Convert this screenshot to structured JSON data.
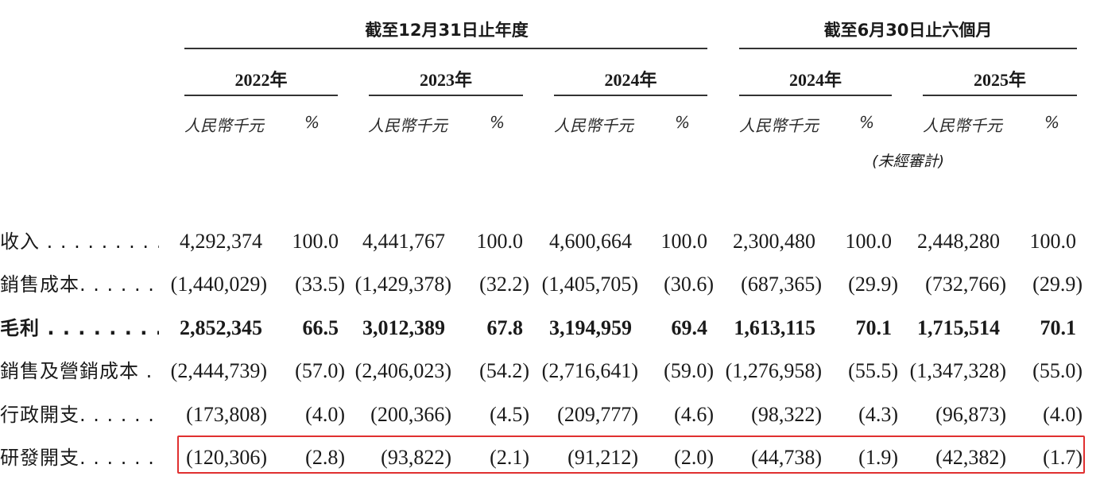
{
  "header": {
    "group_annual": "截至12月31日止年度",
    "group_half": "截至6月30日止六個月",
    "years": [
      "2022年",
      "2023年",
      "2024年",
      "2024年",
      "2025年"
    ],
    "unit_amount": "人民幣千元",
    "unit_pct": "%",
    "unaudited_note": "(未經審計)"
  },
  "rows": [
    {
      "label": "收入 . . . . . . . . . . . .",
      "values": [
        "4,292,374",
        "100.0",
        "4,441,767",
        "100.0",
        "4,600,664",
        "100.0",
        "2,300,480",
        "100.0",
        "2,448,280",
        "100.0"
      ]
    },
    {
      "label": "銷售成本. . . . . . . . .",
      "values": [
        "(1,440,029)",
        "(33.5)",
        "(1,429,378)",
        "(32.2)",
        "(1,405,705)",
        "(30.6)",
        "(687,365)",
        "(29.9)",
        "(732,766)",
        "(29.9)"
      ]
    },
    {
      "label": "毛利 . . . . . . . . . . . .",
      "values": [
        "2,852,345",
        "66.5",
        "3,012,389",
        "67.8",
        "3,194,959",
        "69.4",
        "1,613,115",
        "70.1",
        "1,715,514",
        "70.1"
      ]
    },
    {
      "label": "銷售及營銷成本 . .",
      "values": [
        "(2,444,739)",
        "(57.0)",
        "(2,406,023)",
        "(54.2)",
        "(2,716,641)",
        "(59.0)",
        "(1,276,958)",
        "(55.5)",
        "(1,347,328)",
        "(55.0)"
      ]
    },
    {
      "label": "行政開支. . . . . . . . .",
      "values": [
        "(173,808)",
        "(4.0)",
        "(200,366)",
        "(4.5)",
        "(209,777)",
        "(4.6)",
        "(98,322)",
        "(4.3)",
        "(96,873)",
        "(4.0)"
      ]
    },
    {
      "label": "研發開支. . . . . . . . .",
      "values": [
        "(120,306)",
        "(2.8)",
        "(93,822)",
        "(2.1)",
        "(91,212)",
        "(2.0)",
        "(44,738)",
        "(1.9)",
        "(42,382)",
        "(1.7)"
      ]
    }
  ],
  "highlight_color": "#e03030"
}
